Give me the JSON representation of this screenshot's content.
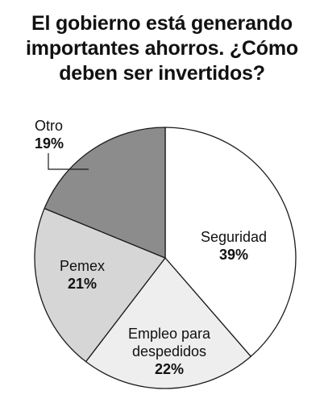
{
  "title_lines": [
    "El gobierno está generando",
    "importantes ahorros. ¿Cómo",
    "deben ser invertidos?"
  ],
  "chart_data": {
    "type": "pie",
    "title": "El gobierno está generando importantes ahorros. ¿Cómo deben ser invertidos?",
    "start": "12 o'clock",
    "direction": "clockwise",
    "slices": [
      {
        "name_lines": [
          "Seguridad"
        ],
        "label": "39%",
        "value": 39,
        "color": "#ffffff"
      },
      {
        "name_lines": [
          "Empleo para",
          "despedidos"
        ],
        "label": "22%",
        "value": 22,
        "color": "#eeeeee"
      },
      {
        "name_lines": [
          "Pemex"
        ],
        "label": "21%",
        "value": 21,
        "color": "#d6d6d6"
      },
      {
        "name_lines": [
          "Otro"
        ],
        "label": "19%",
        "value": 19,
        "color": "#8c8c8c"
      }
    ],
    "stroke_color": "#1a1a1a"
  }
}
